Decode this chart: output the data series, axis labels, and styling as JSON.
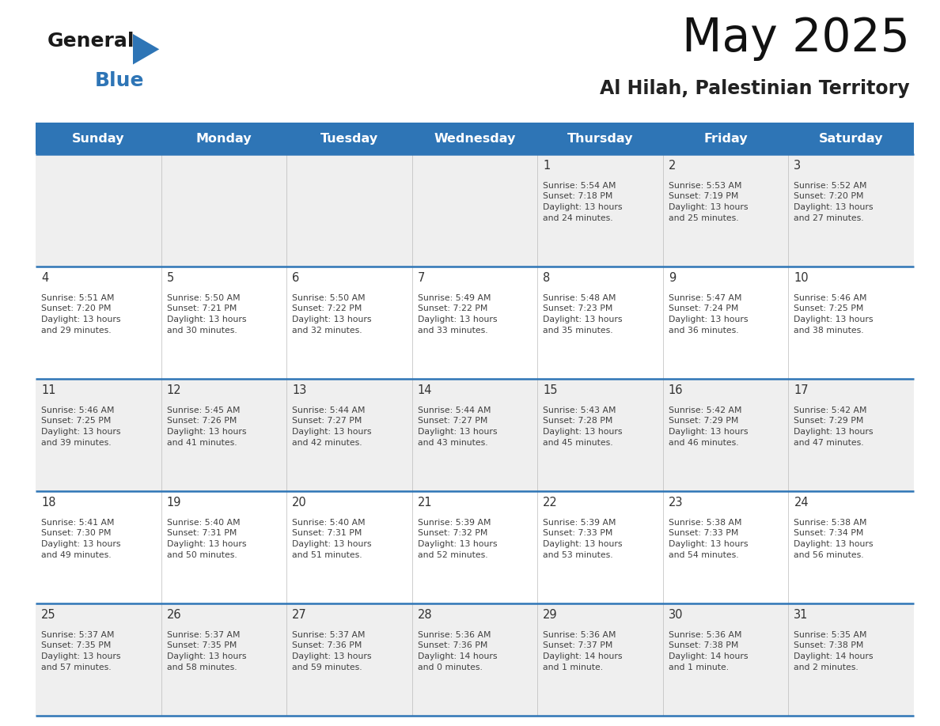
{
  "title": "May 2025",
  "subtitle": "Al Hilah, Palestinian Territory",
  "header_bg": "#2E75B6",
  "header_text_color": "#FFFFFF",
  "odd_row_bg": "#EFEFEF",
  "even_row_bg": "#FFFFFF",
  "text_color": "#404040",
  "day_number_color": "#333333",
  "line_color": "#2E75B6",
  "days_of_week": [
    "Sunday",
    "Monday",
    "Tuesday",
    "Wednesday",
    "Thursday",
    "Friday",
    "Saturday"
  ],
  "calendar_data": [
    [
      "",
      "",
      "",
      "",
      "1\nSunrise: 5:54 AM\nSunset: 7:18 PM\nDaylight: 13 hours\nand 24 minutes.",
      "2\nSunrise: 5:53 AM\nSunset: 7:19 PM\nDaylight: 13 hours\nand 25 minutes.",
      "3\nSunrise: 5:52 AM\nSunset: 7:20 PM\nDaylight: 13 hours\nand 27 minutes."
    ],
    [
      "4\nSunrise: 5:51 AM\nSunset: 7:20 PM\nDaylight: 13 hours\nand 29 minutes.",
      "5\nSunrise: 5:50 AM\nSunset: 7:21 PM\nDaylight: 13 hours\nand 30 minutes.",
      "6\nSunrise: 5:50 AM\nSunset: 7:22 PM\nDaylight: 13 hours\nand 32 minutes.",
      "7\nSunrise: 5:49 AM\nSunset: 7:22 PM\nDaylight: 13 hours\nand 33 minutes.",
      "8\nSunrise: 5:48 AM\nSunset: 7:23 PM\nDaylight: 13 hours\nand 35 minutes.",
      "9\nSunrise: 5:47 AM\nSunset: 7:24 PM\nDaylight: 13 hours\nand 36 minutes.",
      "10\nSunrise: 5:46 AM\nSunset: 7:25 PM\nDaylight: 13 hours\nand 38 minutes."
    ],
    [
      "11\nSunrise: 5:46 AM\nSunset: 7:25 PM\nDaylight: 13 hours\nand 39 minutes.",
      "12\nSunrise: 5:45 AM\nSunset: 7:26 PM\nDaylight: 13 hours\nand 41 minutes.",
      "13\nSunrise: 5:44 AM\nSunset: 7:27 PM\nDaylight: 13 hours\nand 42 minutes.",
      "14\nSunrise: 5:44 AM\nSunset: 7:27 PM\nDaylight: 13 hours\nand 43 minutes.",
      "15\nSunrise: 5:43 AM\nSunset: 7:28 PM\nDaylight: 13 hours\nand 45 minutes.",
      "16\nSunrise: 5:42 AM\nSunset: 7:29 PM\nDaylight: 13 hours\nand 46 minutes.",
      "17\nSunrise: 5:42 AM\nSunset: 7:29 PM\nDaylight: 13 hours\nand 47 minutes."
    ],
    [
      "18\nSunrise: 5:41 AM\nSunset: 7:30 PM\nDaylight: 13 hours\nand 49 minutes.",
      "19\nSunrise: 5:40 AM\nSunset: 7:31 PM\nDaylight: 13 hours\nand 50 minutes.",
      "20\nSunrise: 5:40 AM\nSunset: 7:31 PM\nDaylight: 13 hours\nand 51 minutes.",
      "21\nSunrise: 5:39 AM\nSunset: 7:32 PM\nDaylight: 13 hours\nand 52 minutes.",
      "22\nSunrise: 5:39 AM\nSunset: 7:33 PM\nDaylight: 13 hours\nand 53 minutes.",
      "23\nSunrise: 5:38 AM\nSunset: 7:33 PM\nDaylight: 13 hours\nand 54 minutes.",
      "24\nSunrise: 5:38 AM\nSunset: 7:34 PM\nDaylight: 13 hours\nand 56 minutes."
    ],
    [
      "25\nSunrise: 5:37 AM\nSunset: 7:35 PM\nDaylight: 13 hours\nand 57 minutes.",
      "26\nSunrise: 5:37 AM\nSunset: 7:35 PM\nDaylight: 13 hours\nand 58 minutes.",
      "27\nSunrise: 5:37 AM\nSunset: 7:36 PM\nDaylight: 13 hours\nand 59 minutes.",
      "28\nSunrise: 5:36 AM\nSunset: 7:36 PM\nDaylight: 14 hours\nand 0 minutes.",
      "29\nSunrise: 5:36 AM\nSunset: 7:37 PM\nDaylight: 14 hours\nand 1 minute.",
      "30\nSunrise: 5:36 AM\nSunset: 7:38 PM\nDaylight: 14 hours\nand 1 minute.",
      "31\nSunrise: 5:35 AM\nSunset: 7:38 PM\nDaylight: 14 hours\nand 2 minutes."
    ]
  ],
  "logo_color_general": "#1a1a1a",
  "logo_color_blue": "#2E75B6",
  "logo_triangle_color": "#2E75B6",
  "fig_width": 11.88,
  "fig_height": 9.18,
  "dpi": 100
}
